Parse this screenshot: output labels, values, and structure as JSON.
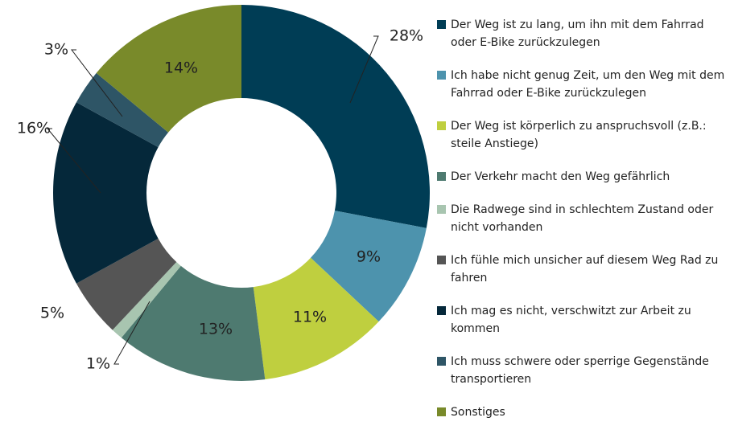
{
  "chart_data": {
    "type": "donut",
    "categories": [
      "Der Weg ist zu lang, um ihn mit dem Fahrrad oder E-Bike zurückzulegen",
      "Ich habe nicht genug Zeit, um den Weg mit dem Fahrrad oder E-Bike zurückzulegen",
      "Der Weg ist körperlich zu anspruchsvoll (z.B.: steile Anstiege)",
      "Der Verkehr macht den Weg gefährlich",
      "Die Radwege sind in schlechtem Zustand oder nicht vorhanden",
      "Ich fühle mich unsicher auf diesem Weg Rad zu fahren",
      "Ich mag es nicht, verschwitzt zur Arbeit zu kommen",
      "Ich muss schwere oder sperrige Gegenstände transportieren",
      "Sonstiges"
    ],
    "values": [
      28,
      9,
      11,
      13,
      1,
      5,
      16,
      3,
      14
    ],
    "value_labels": [
      "28%",
      "9%",
      "11%",
      "13%",
      "1%",
      "5%",
      "16%",
      "3%",
      "14%"
    ],
    "colors": [
      "#003d55",
      "#4d93ad",
      "#bfcf3f",
      "#4e7a70",
      "#a8c5b0",
      "#555555",
      "#05283a",
      "#2e5566",
      "#798a2a"
    ]
  }
}
